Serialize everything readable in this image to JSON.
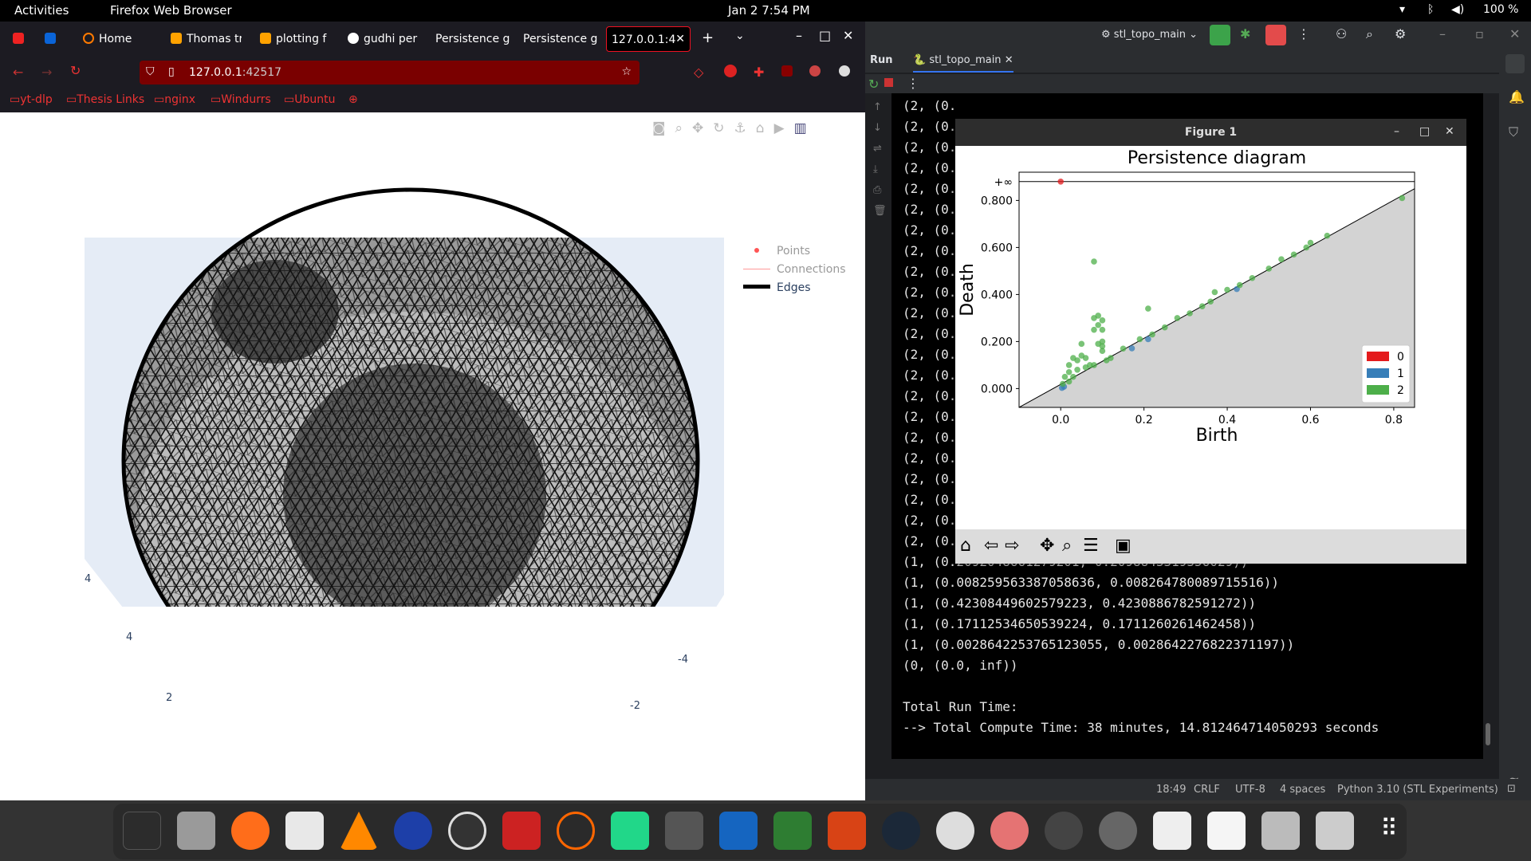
{
  "topbar": {
    "activities": "Activities",
    "app": "Firefox Web Browser",
    "clock": "Jan 2  7:54 PM",
    "battery": "100 %"
  },
  "firefox": {
    "tabs": [
      {
        "label": "Home",
        "color": "#ff7a00"
      },
      {
        "label": "Thomas tr",
        "color": "#ffa200"
      },
      {
        "label": "plotting f",
        "color": "#ffa200"
      },
      {
        "label": "gudhi per",
        "color": "#fff"
      },
      {
        "label": "Persistence g",
        "color": ""
      },
      {
        "label": "Persistence g",
        "color": ""
      },
      {
        "label": "127.0.0.1:4",
        "color": ""
      }
    ],
    "url": {
      "host": "127.0.0.1",
      "port": ":42517"
    },
    "bookmarks": [
      "yt-dlp",
      "Thesis Links",
      "nginx",
      "Windurrs",
      "Ubuntu"
    ],
    "legend": {
      "points": "Points",
      "connections": "Connections",
      "edges": "Edges"
    },
    "axis_ticks": [
      "4",
      "4",
      "2",
      "-4",
      "-2"
    ]
  },
  "pycharm": {
    "project": "stl_topo_main",
    "run_label": "Run",
    "run_tab": "stl_topo_main",
    "console_lines": [
      "(2, (0.",
      "(2, (0.",
      "(2, (0.",
      "(2, (0.",
      "(2, (0.",
      "(2, (0.",
      "(2, (0.",
      "(2, (0.",
      "(2, (0.",
      "(2, (0.",
      "(2, (0.",
      "(2, (0.",
      "(2, (0.",
      "(2, (0.",
      "(2, (0.",
      "(2, (0.",
      "(2, (0.",
      "(2, (0.",
      "(2, (0.",
      "(2, (0.",
      "(2, (0.",
      "(2, (0.",
      "(1, (0.2092048661279201, 0.2098843319356029))",
      "(1, (0.008259563387058636, 0.008264780089715516))",
      "(1, (0.42308449602579223, 0.4230886782591272))",
      "(1, (0.17112534650539224, 0.1711260261462458))",
      "(1, (0.0028642253765123055, 0.0028642276822371197))",
      "(0, (0.0, inf))",
      "",
      "Total Run Time:",
      "--> Total Compute Time: 38 minutes, 14.812464714050293 seconds"
    ],
    "status": {
      "pos": "18:49",
      "eol": "CRLF",
      "enc": "UTF-8",
      "indent": "4 spaces",
      "interp": "Python 3.10 (STL Experiments)"
    }
  },
  "figure": {
    "window_title": "Figure 1",
    "chart_data": {
      "type": "scatter",
      "title": "Persistence diagram",
      "xlabel": "Birth",
      "ylabel": "Death",
      "xlim": [
        -0.1,
        0.85
      ],
      "ylim": [
        -0.08,
        0.92
      ],
      "xticks": [
        "0.0",
        "0.2",
        "0.4",
        "0.6",
        "0.8"
      ],
      "yticks": [
        "0.000",
        "0.200",
        "0.400",
        "0.600",
        "0.800"
      ],
      "inf_label": "+∞",
      "legend_position": "lower-right",
      "series": [
        {
          "name": "0",
          "color": "#e41a1c",
          "points": [
            [
              0.0,
              0.88
            ]
          ]
        },
        {
          "name": "1",
          "color": "#377eb8",
          "points": [
            [
              0.21,
              0.21
            ],
            [
              0.008,
              0.008
            ],
            [
              0.423,
              0.423
            ],
            [
              0.171,
              0.171
            ],
            [
              0.003,
              0.003
            ]
          ]
        },
        {
          "name": "2",
          "color": "#4daf4a",
          "points": [
            [
              0.08,
              0.54
            ],
            [
              0.09,
              0.31
            ],
            [
              0.08,
              0.3
            ],
            [
              0.1,
              0.29
            ],
            [
              0.09,
              0.27
            ],
            [
              0.1,
              0.25
            ],
            [
              0.08,
              0.25
            ],
            [
              0.1,
              0.2
            ],
            [
              0.1,
              0.18
            ],
            [
              0.1,
              0.16
            ],
            [
              0.05,
              0.19
            ],
            [
              0.09,
              0.19
            ],
            [
              0.21,
              0.34
            ],
            [
              0.37,
              0.41
            ],
            [
              0.03,
              0.13
            ],
            [
              0.04,
              0.12
            ],
            [
              0.05,
              0.14
            ],
            [
              0.06,
              0.13
            ],
            [
              0.02,
              0.1
            ],
            [
              0.01,
              0.05
            ],
            [
              0.02,
              0.07
            ],
            [
              0.005,
              0.02
            ],
            [
              0.04,
              0.08
            ],
            [
              0.06,
              0.09
            ],
            [
              0.08,
              0.1
            ],
            [
              0.12,
              0.13
            ],
            [
              0.15,
              0.17
            ],
            [
              0.19,
              0.21
            ],
            [
              0.22,
              0.23
            ],
            [
              0.25,
              0.26
            ],
            [
              0.28,
              0.3
            ],
            [
              0.31,
              0.32
            ],
            [
              0.34,
              0.35
            ],
            [
              0.36,
              0.37
            ],
            [
              0.4,
              0.42
            ],
            [
              0.43,
              0.44
            ],
            [
              0.46,
              0.47
            ],
            [
              0.5,
              0.51
            ],
            [
              0.53,
              0.55
            ],
            [
              0.56,
              0.57
            ],
            [
              0.59,
              0.6
            ],
            [
              0.6,
              0.62
            ],
            [
              0.64,
              0.65
            ],
            [
              0.82,
              0.81
            ],
            [
              0.02,
              0.03
            ],
            [
              0.03,
              0.05
            ],
            [
              0.07,
              0.1
            ],
            [
              0.11,
              0.12
            ]
          ]
        }
      ]
    }
  }
}
